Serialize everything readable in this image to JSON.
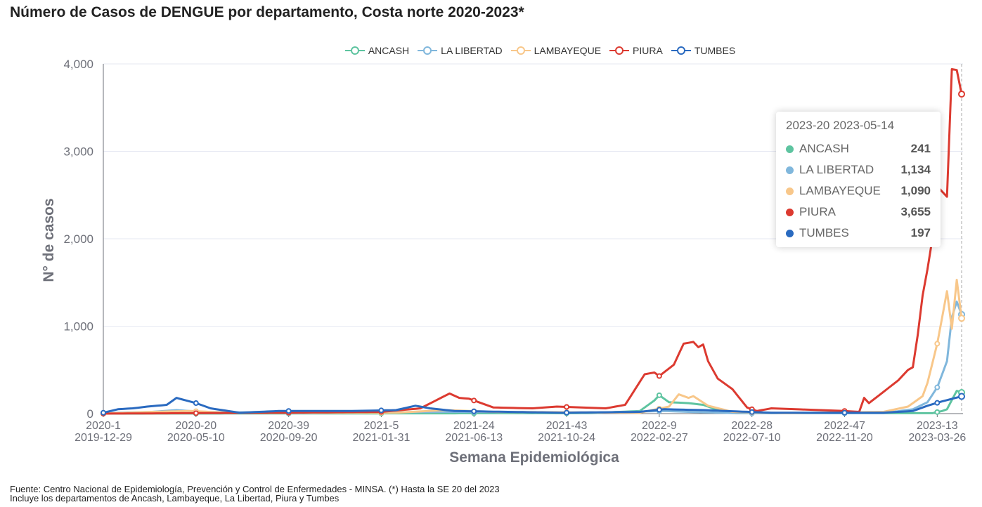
{
  "title": "Número de Casos de DENGUE por departamento, Costa norte 2020-2023*",
  "footnote": [
    "Fuente: Centro Nacional de Epidemiología, Prevención y Control de Enfermedades - MINSA. (*) Hasta la SE 20 del 2023",
    "Incluye los departamentos de Ancash, Lambayeque, La Libertad, Piura y Tumbes"
  ],
  "tooltip": {
    "header": "2023-20 2023-05-14",
    "rows": [
      {
        "name": "ANCASH",
        "value": "241",
        "color": "#5ec4a0"
      },
      {
        "name": "LA LIBERTAD",
        "value": "1,134",
        "color": "#80b7dc"
      },
      {
        "name": "LAMBAYEQUE",
        "value": "1,090",
        "color": "#f8c78a"
      },
      {
        "name": "PIURA",
        "value": "3,655",
        "color": "#dc3a30"
      },
      {
        "name": "TUMBES",
        "value": "197",
        "color": "#2a6ac0"
      }
    ]
  },
  "chart_data": {
    "type": "line",
    "title": "Número de Casos de DENGUE por departamento, Costa norte 2020-2023*",
    "xlabel": "Semana Epidemiológica",
    "ylabel": "N° de casos",
    "ylim": [
      0,
      4000
    ],
    "yticks": [
      "0",
      "1,000",
      "2,000",
      "3,000",
      "4,000"
    ],
    "n_weeks": 177,
    "xticks": [
      {
        "week": "2020-1",
        "date": "2019-12-29"
      },
      {
        "week": "2020-20",
        "date": "2020-05-10"
      },
      {
        "week": "2020-39",
        "date": "2020-09-20"
      },
      {
        "week": "2021-5",
        "date": "2021-01-31"
      },
      {
        "week": "2021-24",
        "date": "2021-06-13"
      },
      {
        "week": "2021-43",
        "date": "2021-10-24"
      },
      {
        "week": "2022-9",
        "date": "2022-02-27"
      },
      {
        "week": "2022-28",
        "date": "2022-07-10"
      },
      {
        "week": "2022-47",
        "date": "2022-11-20"
      },
      {
        "week": "2023-13",
        "date": "2023-03-26"
      }
    ],
    "legend_position": "top",
    "series": [
      {
        "name": "ANCASH",
        "color": "#5ec4a0",
        "points": [
          [
            0,
            0
          ],
          [
            100,
            5
          ],
          [
            110,
            30
          ],
          [
            113,
            150
          ],
          [
            114,
            210
          ],
          [
            116,
            130
          ],
          [
            120,
            120
          ],
          [
            123,
            100
          ],
          [
            127,
            20
          ],
          [
            130,
            5
          ],
          [
            170,
            5
          ],
          [
            172,
            30
          ],
          [
            173,
            50
          ],
          [
            175,
            260
          ],
          [
            176,
            241
          ]
        ]
      },
      {
        "name": "LA LIBERTAD",
        "color": "#80b7dc",
        "points": [
          [
            0,
            5
          ],
          [
            10,
            20
          ],
          [
            15,
            40
          ],
          [
            20,
            20
          ],
          [
            40,
            5
          ],
          [
            70,
            20
          ],
          [
            100,
            10
          ],
          [
            115,
            30
          ],
          [
            120,
            20
          ],
          [
            130,
            5
          ],
          [
            160,
            5
          ],
          [
            166,
            50
          ],
          [
            169,
            130
          ],
          [
            171,
            300
          ],
          [
            173,
            600
          ],
          [
            174,
            1100
          ],
          [
            175,
            1280
          ],
          [
            176,
            1134
          ]
        ]
      },
      {
        "name": "LAMBAYEQUE",
        "color": "#f8c78a",
        "points": [
          [
            0,
            0
          ],
          [
            10,
            20
          ],
          [
            18,
            30
          ],
          [
            25,
            10
          ],
          [
            60,
            10
          ],
          [
            70,
            40
          ],
          [
            80,
            20
          ],
          [
            110,
            10
          ],
          [
            116,
            80
          ],
          [
            118,
            220
          ],
          [
            120,
            180
          ],
          [
            121,
            200
          ],
          [
            124,
            90
          ],
          [
            129,
            20
          ],
          [
            140,
            5
          ],
          [
            160,
            20
          ],
          [
            165,
            80
          ],
          [
            168,
            200
          ],
          [
            169,
            350
          ],
          [
            171,
            800
          ],
          [
            173,
            1400
          ],
          [
            174,
            970
          ],
          [
            175,
            1530
          ],
          [
            176,
            1090
          ]
        ]
      },
      {
        "name": "PIURA",
        "color": "#dc3a30",
        "points": [
          [
            0,
            0
          ],
          [
            36,
            10
          ],
          [
            57,
            20
          ],
          [
            65,
            60
          ],
          [
            71,
            230
          ],
          [
            73,
            180
          ],
          [
            75,
            170
          ],
          [
            80,
            70
          ],
          [
            88,
            60
          ],
          [
            93,
            80
          ],
          [
            103,
            60
          ],
          [
            107,
            100
          ],
          [
            111,
            450
          ],
          [
            113,
            470
          ],
          [
            114,
            430
          ],
          [
            117,
            560
          ],
          [
            119,
            800
          ],
          [
            121,
            820
          ],
          [
            122,
            760
          ],
          [
            123,
            790
          ],
          [
            124,
            600
          ],
          [
            126,
            400
          ],
          [
            129,
            280
          ],
          [
            132,
            70
          ],
          [
            134,
            30
          ],
          [
            137,
            60
          ],
          [
            152,
            30
          ],
          [
            155,
            20
          ],
          [
            156,
            180
          ],
          [
            157,
            120
          ],
          [
            160,
            250
          ],
          [
            163,
            380
          ],
          [
            165,
            500
          ],
          [
            166,
            530
          ],
          [
            167,
            900
          ],
          [
            168,
            1350
          ],
          [
            169,
            1650
          ],
          [
            170,
            2000
          ],
          [
            171,
            2600
          ],
          [
            173,
            2480
          ],
          [
            174,
            3940
          ],
          [
            175,
            3930
          ],
          [
            176,
            3655
          ]
        ]
      },
      {
        "name": "TUMBES",
        "color": "#2a6ac0",
        "points": [
          [
            0,
            10
          ],
          [
            3,
            50
          ],
          [
            6,
            60
          ],
          [
            9,
            80
          ],
          [
            13,
            100
          ],
          [
            15,
            180
          ],
          [
            17,
            150
          ],
          [
            19,
            120
          ],
          [
            22,
            60
          ],
          [
            28,
            10
          ],
          [
            36,
            30
          ],
          [
            51,
            30
          ],
          [
            60,
            40
          ],
          [
            64,
            90
          ],
          [
            67,
            60
          ],
          [
            72,
            30
          ],
          [
            94,
            10
          ],
          [
            110,
            20
          ],
          [
            115,
            50
          ],
          [
            123,
            40
          ],
          [
            137,
            10
          ],
          [
            160,
            10
          ],
          [
            166,
            30
          ],
          [
            169,
            90
          ],
          [
            172,
            140
          ],
          [
            176,
            197
          ]
        ]
      }
    ]
  }
}
